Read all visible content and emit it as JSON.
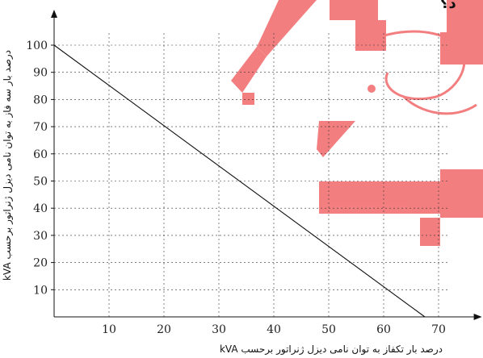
{
  "chart_data": {
    "type": "line",
    "xlabel": "درصد بار تکفاز به توان نامی دیزل ژنراتور برحسب kVA",
    "ylabel": "درصد بار سه فاز به توان نامی دیزل ژنراتور برحسب kVA",
    "x_ticks": [
      10,
      20,
      30,
      40,
      50,
      60,
      70
    ],
    "y_ticks": [
      10,
      20,
      30,
      40,
      50,
      60,
      70,
      80,
      90,
      100
    ],
    "xlim": [
      0,
      72
    ],
    "ylim": [
      0,
      105
    ],
    "grid": true,
    "series": [
      {
        "x": [
          0,
          67.5
        ],
        "y": [
          100,
          0
        ]
      }
    ],
    "top_text_fragment": "د؟"
  },
  "colors": {
    "watermark": "#f3787a",
    "axis": "#111111"
  }
}
